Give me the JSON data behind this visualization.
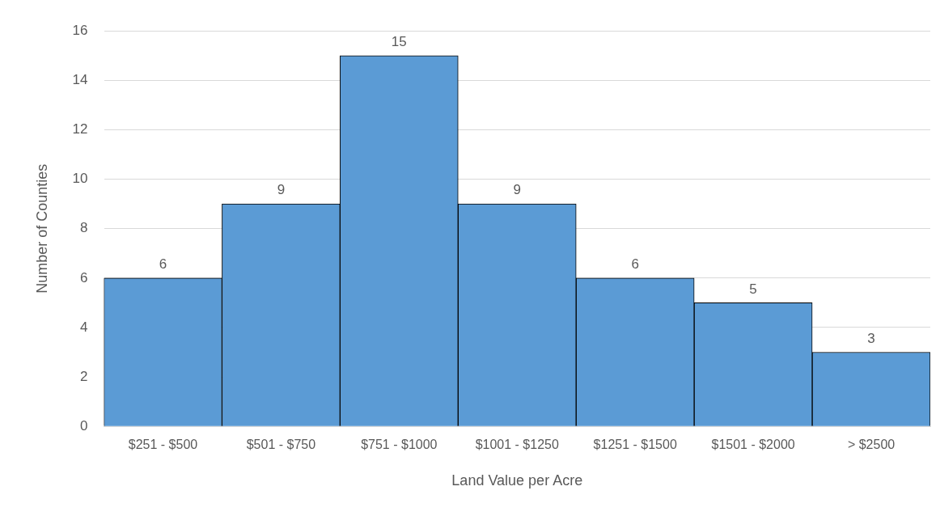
{
  "chart_data": {
    "type": "bar",
    "xlabel": "Land Value per Acre",
    "ylabel": "Number of Counties",
    "categories": [
      "$251 - $500",
      "$501 - $750",
      "$751 - $1000",
      "$1001 - $1250",
      "$1251 - $1500",
      "$1501 - $2000",
      "> $2500"
    ],
    "values": [
      6,
      9,
      15,
      9,
      6,
      5,
      3
    ],
    "color": "#5b9bd5",
    "ylim": [
      0,
      16
    ],
    "yticks": [
      0,
      2,
      4,
      6,
      8,
      10,
      12,
      14,
      16
    ],
    "grid": "y",
    "data_labels": true
  }
}
